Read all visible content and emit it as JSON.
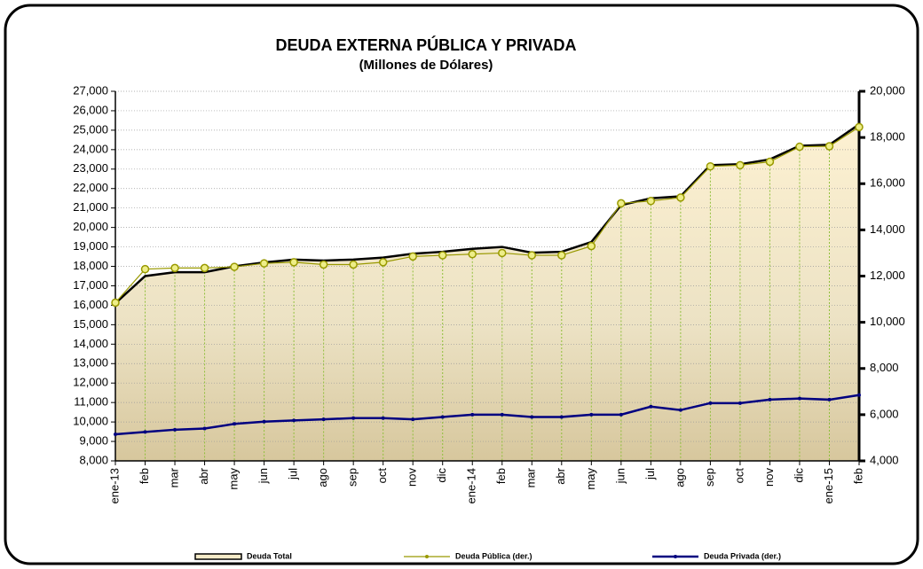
{
  "chart_data": {
    "type": "line",
    "title": "DEUDA EXTERNA PÚBLICA Y PRIVADA",
    "subtitle": "(Millones de Dólares)",
    "categories": [
      "ene-13",
      "feb",
      "mar",
      "abr",
      "may",
      "jun",
      "jul",
      "ago",
      "sep",
      "oct",
      "nov",
      "dic",
      "ene-14",
      "feb",
      "mar",
      "abr",
      "may",
      "jun",
      "jul",
      "ago",
      "sep",
      "oct",
      "nov",
      "dic",
      "ene-15",
      "feb"
    ],
    "series": [
      {
        "name": "Deuda Total",
        "color": "#000000",
        "axis": "y",
        "area": true,
        "values": [
          16100,
          17500,
          17700,
          17700,
          18000,
          18200,
          18350,
          18300,
          18350,
          18450,
          18650,
          18750,
          18900,
          19000,
          18700,
          18750,
          19250,
          21150,
          21500,
          21600,
          23200,
          23250,
          23500,
          24200,
          24250,
          25300
        ]
      },
      {
        "name": "Deuda Pública (der.)",
        "color": "#999900",
        "axis": "y2",
        "values": [
          10850,
          12300,
          12350,
          12350,
          12400,
          12550,
          12600,
          12500,
          12500,
          12600,
          12850,
          12900,
          12950,
          13000,
          12900,
          12900,
          13300,
          15150,
          15250,
          15400,
          16750,
          16800,
          16950,
          17600,
          17620,
          18450
        ]
      },
      {
        "name": "Deuda Privada (der.)",
        "color": "#000080",
        "axis": "y2",
        "values": [
          5150,
          5250,
          5350,
          5400,
          5600,
          5700,
          5750,
          5800,
          5850,
          5850,
          5800,
          5900,
          6000,
          6000,
          5900,
          5900,
          6000,
          6000,
          6350,
          6200,
          6500,
          6500,
          6650,
          6700,
          6650,
          6850
        ]
      }
    ],
    "ylim": [
      8000,
      27000
    ],
    "yticks": [
      {
        "value": 8000,
        "label": "8,000"
      },
      {
        "value": 9000,
        "label": "9,000"
      },
      {
        "value": 10000,
        "label": "10,000"
      },
      {
        "value": 11000,
        "label": "11,000"
      },
      {
        "value": 12000,
        "label": "12,000"
      },
      {
        "value": 13000,
        "label": "13,000"
      },
      {
        "value": 14000,
        "label": "14,000"
      },
      {
        "value": 15000,
        "label": "15,000"
      },
      {
        "value": 16000,
        "label": "16,000"
      },
      {
        "value": 17000,
        "label": "17,000"
      },
      {
        "value": 18000,
        "label": "18,000"
      },
      {
        "value": 19000,
        "label": "19,000"
      },
      {
        "value": 20000,
        "label": "20,000"
      },
      {
        "value": 21000,
        "label": "21,000"
      },
      {
        "value": 22000,
        "label": "22,000"
      },
      {
        "value": 23000,
        "label": "23,000"
      },
      {
        "value": 24000,
        "label": "24,000"
      },
      {
        "value": 25000,
        "label": "25,000"
      },
      {
        "value": 26000,
        "label": "26,000"
      },
      {
        "value": 27000,
        "label": "27,000"
      }
    ],
    "y2lim": [
      4000,
      20000
    ],
    "y2ticks": [
      {
        "value": 4000,
        "label": "4,000"
      },
      {
        "value": 6000,
        "label": "6,000"
      },
      {
        "value": 8000,
        "label": "8,000"
      },
      {
        "value": 10000,
        "label": "10,000"
      },
      {
        "value": 12000,
        "label": "12,000"
      },
      {
        "value": 14000,
        "label": "14,000"
      },
      {
        "value": 16000,
        "label": "16,000"
      },
      {
        "value": 18000,
        "label": "18,000"
      },
      {
        "value": 20000,
        "label": "20,000"
      }
    ],
    "grid": true
  }
}
